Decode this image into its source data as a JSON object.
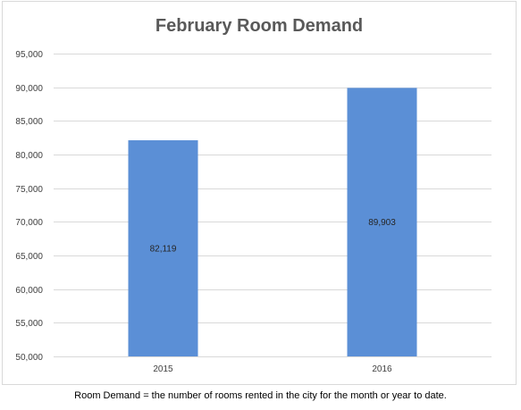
{
  "chart_data": {
    "type": "bar",
    "title": "February Room Demand",
    "categories": [
      "2015",
      "2016"
    ],
    "values": [
      82119,
      89903
    ],
    "data_labels": [
      "82,119",
      "89,903"
    ],
    "ylim": [
      50000,
      95000
    ],
    "yticks": [
      "50,000",
      "55,000",
      "60,000",
      "65,000",
      "70,000",
      "75,000",
      "80,000",
      "85,000",
      "90,000",
      "95,000"
    ],
    "grid": true,
    "bar_color": "#5b8fd6"
  },
  "footnote": "Room Demand = the number of rooms rented in the city for the month or year to date."
}
